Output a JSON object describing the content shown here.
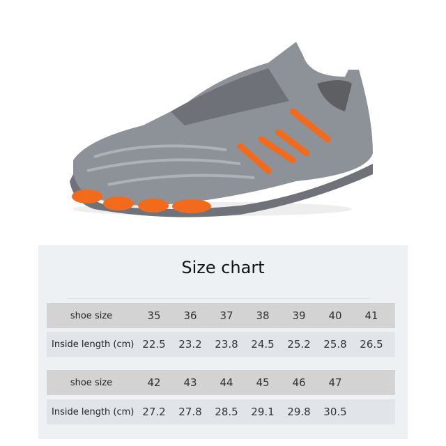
{
  "title": "Size chart",
  "tables": [
    {
      "size_label": "shoe size",
      "length_label": "Inside length (cm)",
      "sizes": [
        "35",
        "36",
        "37",
        "38",
        "39",
        "40",
        "41"
      ],
      "lengths": [
        "22.5",
        "23.2",
        "23.8",
        "24.5",
        "25.2",
        "25.8",
        "26.5"
      ]
    },
    {
      "size_label": "shoe size",
      "length_label": "Inside length (cm)",
      "sizes": [
        "42",
        "43",
        "44",
        "45",
        "46",
        "47"
      ],
      "lengths": [
        "27.2",
        "27.8",
        "28.5",
        "29.1",
        "29.8",
        "30.5"
      ]
    }
  ],
  "colors": {
    "shoe_gray": "#8a8f96",
    "accent_orange": "#f26b1d",
    "panel": "#eef1f4"
  }
}
